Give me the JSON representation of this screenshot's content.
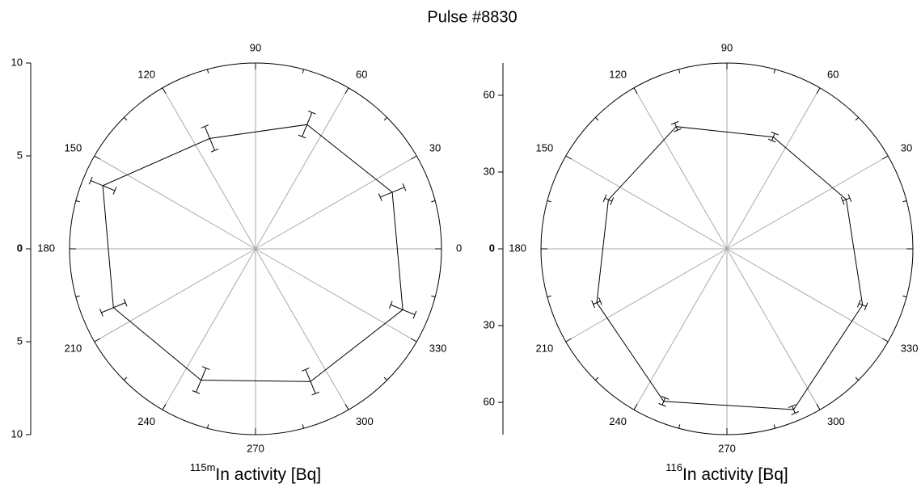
{
  "title": "Pulse #8830",
  "chart_data": [
    {
      "type": "polar",
      "theta": [
        22.5,
        67.5,
        112.5,
        157.5,
        202.5,
        247.5,
        292.5,
        337.5
      ],
      "values": [
        7.96,
        7.24,
        6.43,
        8.89,
        8.27,
        7.65,
        7.73,
        8.57
      ],
      "errors": [
        0.7,
        0.7,
        0.7,
        0.7,
        0.7,
        0.7,
        0.7,
        0.7
      ],
      "rlim": [
        0,
        10
      ],
      "rticks": [
        10,
        5,
        0,
        {
          "value": -5,
          "label": "5"
        },
        {
          "value": -10,
          "label": "10"
        }
      ],
      "thetaticks": [
        0,
        30,
        60,
        90,
        120,
        150,
        180,
        210,
        240,
        270,
        300,
        330
      ],
      "xlabel_sup": "115m",
      "xlabel": "In activity [Bq]",
      "color": "#000000",
      "grid": true
    },
    {
      "type": "polar",
      "theta": [
        22.5,
        67.5,
        112.5,
        157.5,
        202.5,
        247.5,
        292.5,
        337.5
      ],
      "values": [
        50.4,
        47.3,
        51.7,
        50.1,
        55,
        64.5,
        68,
        57.3
      ],
      "errors": [
        1.5,
        1.5,
        1.5,
        1.5,
        1.5,
        1.5,
        1.5,
        1.5
      ],
      "rlim": [
        0,
        72.6
      ],
      "rticks": [
        60,
        30,
        0,
        {
          "value": -30,
          "label": "30"
        },
        {
          "value": -60,
          "label": "60"
        }
      ],
      "thetaticks": [
        0,
        30,
        60,
        90,
        120,
        150,
        180,
        210,
        240,
        270,
        300,
        330
      ],
      "xlabel_sup": "116",
      "xlabel": "In activity [Bq]",
      "color": "#000000",
      "grid": true
    }
  ]
}
